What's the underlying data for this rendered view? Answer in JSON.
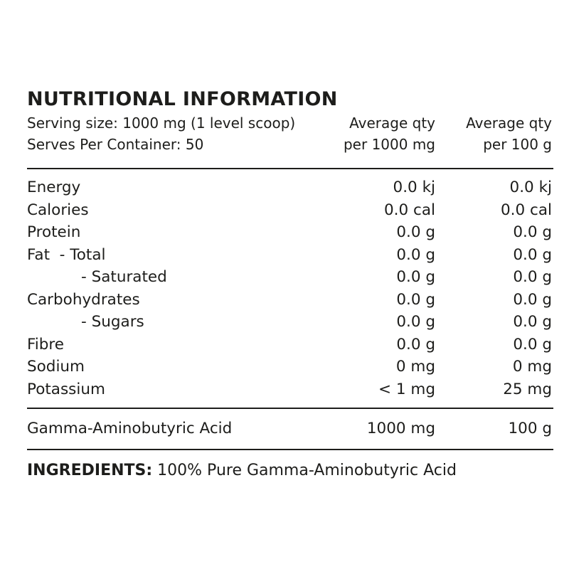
{
  "title": "NUTRITIONAL INFORMATION",
  "header": {
    "serving_size": "Serving size: 1000 mg (1 level scoop)",
    "serves_per_container": "Serves Per Container: 50",
    "col2_line1": "Average qty",
    "col2_line2": "per 1000 mg",
    "col3_line1": "Average qty",
    "col3_line2": "per 100 g"
  },
  "rows": [
    {
      "label": "Energy",
      "per_serving": "0.0 kj",
      "per_100g": "0.0 kj"
    },
    {
      "label": "Calories",
      "per_serving": "0.0 cal",
      "per_100g": "0.0 cal"
    },
    {
      "label": "Protein",
      "per_serving": "0.0 g",
      "per_100g": "0.0 g"
    },
    {
      "label": "Fat  - Total",
      "per_serving": "0.0 g",
      "per_100g": "0.0 g"
    },
    {
      "label": "- Saturated",
      "per_serving": "0.0 g",
      "per_100g": "0.0 g"
    },
    {
      "label": "Carbohydrates",
      "per_serving": "0.0 g",
      "per_100g": "0.0 g"
    },
    {
      "label": "- Sugars",
      "per_serving": "0.0 g",
      "per_100g": "0.0 g"
    },
    {
      "label": "Fibre",
      "per_serving": "0.0 g",
      "per_100g": "0.0 g"
    },
    {
      "label": "Sodium",
      "per_serving": "0 mg",
      "per_100g": "0 mg"
    },
    {
      "label": "Potassium",
      "per_serving": "< 1 mg",
      "per_100g": "25 mg"
    }
  ],
  "active": {
    "label": "Gamma-Aminobutyric Acid",
    "per_serving": "1000 mg",
    "per_100g": "100 g"
  },
  "ingredients": {
    "label": "INGREDIENTS:",
    "text": "100% Pure Gamma-Aminobutyric Acid"
  }
}
